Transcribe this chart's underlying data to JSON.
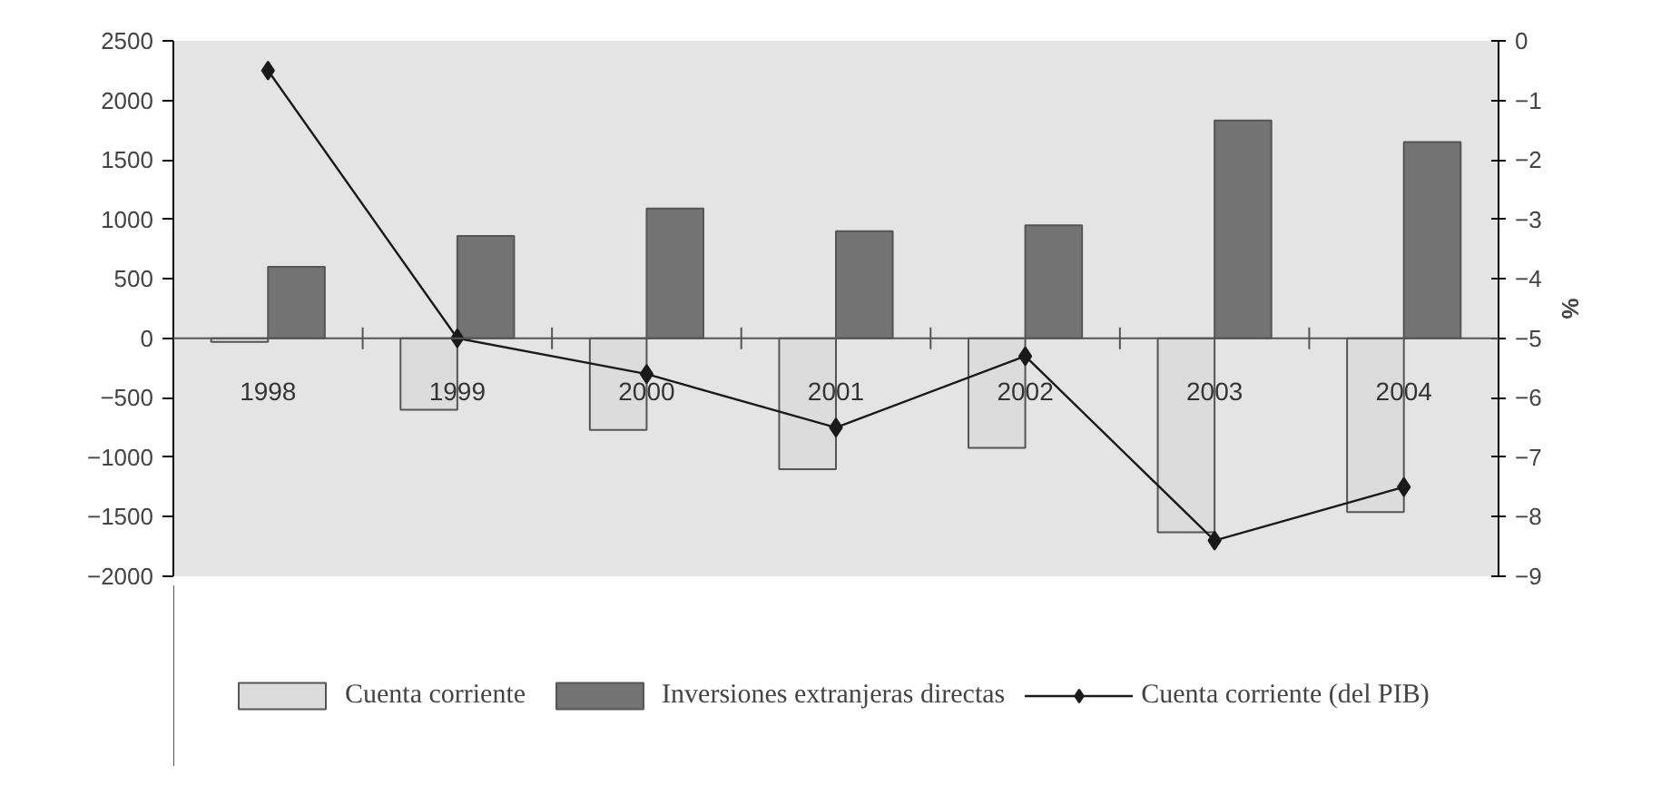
{
  "chart_data": {
    "type": "bar",
    "categories": [
      "1998",
      "1999",
      "2000",
      "2001",
      "2002",
      "2003",
      "2004"
    ],
    "series": [
      {
        "name": "Cuenta corriente",
        "color": "#dcdcdc",
        "values": [
          -30,
          -600,
          -770,
          -1100,
          -920,
          -1630,
          -1460
        ]
      },
      {
        "name": "Inversiones extranjeras directas",
        "color": "#737373",
        "values": [
          600,
          860,
          1090,
          900,
          950,
          1830,
          1650
        ]
      },
      {
        "name": "Cuenta corriente (del PIB)",
        "type": "line",
        "axis": "y2",
        "color": "#1a1a1a",
        "values": [
          -0.5,
          -5.0,
          -5.6,
          -6.5,
          -5.3,
          -8.4,
          -7.5
        ]
      }
    ],
    "ylim": [
      -2000,
      2500
    ],
    "yticks": [
      -2000,
      -1500,
      -1000,
      -500,
      0,
      500,
      1000,
      1500,
      2000,
      2500
    ],
    "y2lim": [
      -9,
      0
    ],
    "y2ticks": [
      -9,
      -8,
      -7,
      -6,
      -5,
      -4,
      -3,
      -2,
      -1,
      0
    ],
    "y2label": "%",
    "marker": "diamond",
    "legend": "bottom"
  }
}
